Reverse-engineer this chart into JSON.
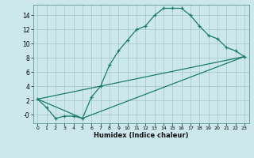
{
  "title": "",
  "xlabel": "Humidex (Indice chaleur)",
  "bg_color": "#cce8ec",
  "grid_color": "#aacccc",
  "line_color": "#1a7a6e",
  "xlim": [
    -0.5,
    23.5
  ],
  "ylim": [
    -1.2,
    15.5
  ],
  "xticks": [
    0,
    1,
    2,
    3,
    4,
    5,
    6,
    7,
    8,
    9,
    10,
    11,
    12,
    13,
    14,
    15,
    16,
    17,
    18,
    19,
    20,
    21,
    22,
    23
  ],
  "yticks": [
    0,
    2,
    4,
    6,
    8,
    10,
    12,
    14
  ],
  "ytick_labels": [
    "-0",
    "2",
    "4",
    "6",
    "8",
    "10",
    "12",
    "14"
  ],
  "series1_x": [
    0,
    1,
    2,
    3,
    4,
    5,
    6,
    7,
    8,
    9,
    10,
    11,
    12,
    13,
    14,
    15,
    16,
    17,
    18,
    19,
    20,
    21,
    22,
    23
  ],
  "series1_y": [
    2.2,
    1.0,
    -0.5,
    -0.2,
    -0.2,
    -0.5,
    2.5,
    4.0,
    7.0,
    9.0,
    10.5,
    12.0,
    12.5,
    14.0,
    15.0,
    15.0,
    15.0,
    14.0,
    12.5,
    11.2,
    10.7,
    9.5,
    9.0,
    8.2
  ],
  "series2_x": [
    0,
    23
  ],
  "series2_y": [
    2.2,
    8.2
  ],
  "series3_x": [
    0,
    5,
    23
  ],
  "series3_y": [
    2.2,
    -0.5,
    8.2
  ]
}
